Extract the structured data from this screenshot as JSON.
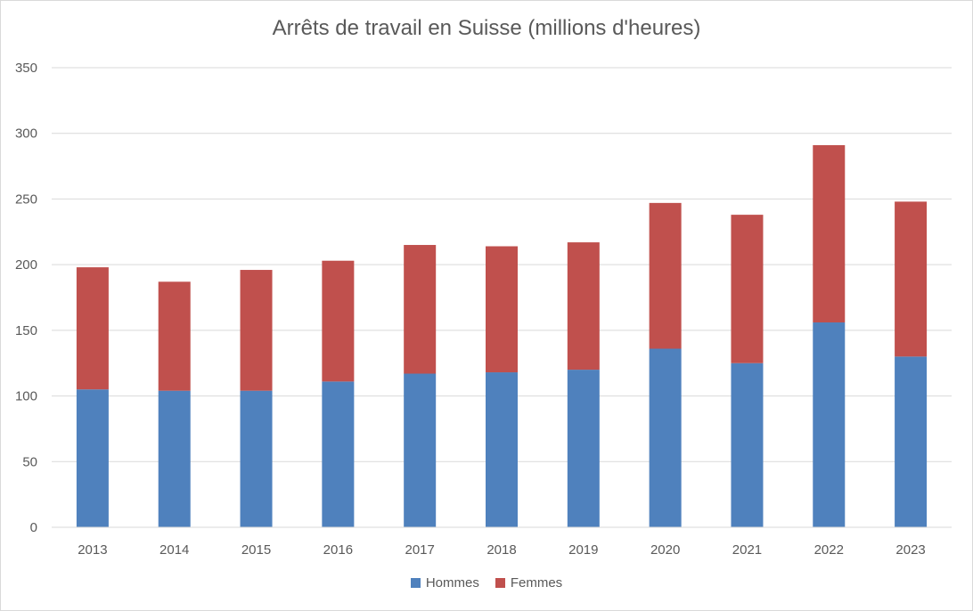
{
  "chart_data": {
    "type": "bar",
    "stacked": true,
    "title": "Arrêts de travail en Suisse (millions d'heures)",
    "xlabel": "",
    "ylabel": "",
    "ylim": [
      0,
      350
    ],
    "yticks": [
      0,
      50,
      100,
      150,
      200,
      250,
      300,
      350
    ],
    "grid": true,
    "legend_position": "bottom",
    "categories": [
      "2013",
      "2014",
      "2015",
      "2016",
      "2017",
      "2018",
      "2019",
      "2020",
      "2021",
      "2022",
      "2023"
    ],
    "series": [
      {
        "name": "Hommes",
        "color": "#4f81bd",
        "values": [
          105,
          104,
          104,
          111,
          117,
          118,
          120,
          136,
          125,
          156,
          130
        ]
      },
      {
        "name": "Femmes",
        "color": "#c0504d",
        "values": [
          93,
          83,
          92,
          92,
          98,
          96,
          97,
          111,
          113,
          135,
          118
        ]
      }
    ]
  }
}
